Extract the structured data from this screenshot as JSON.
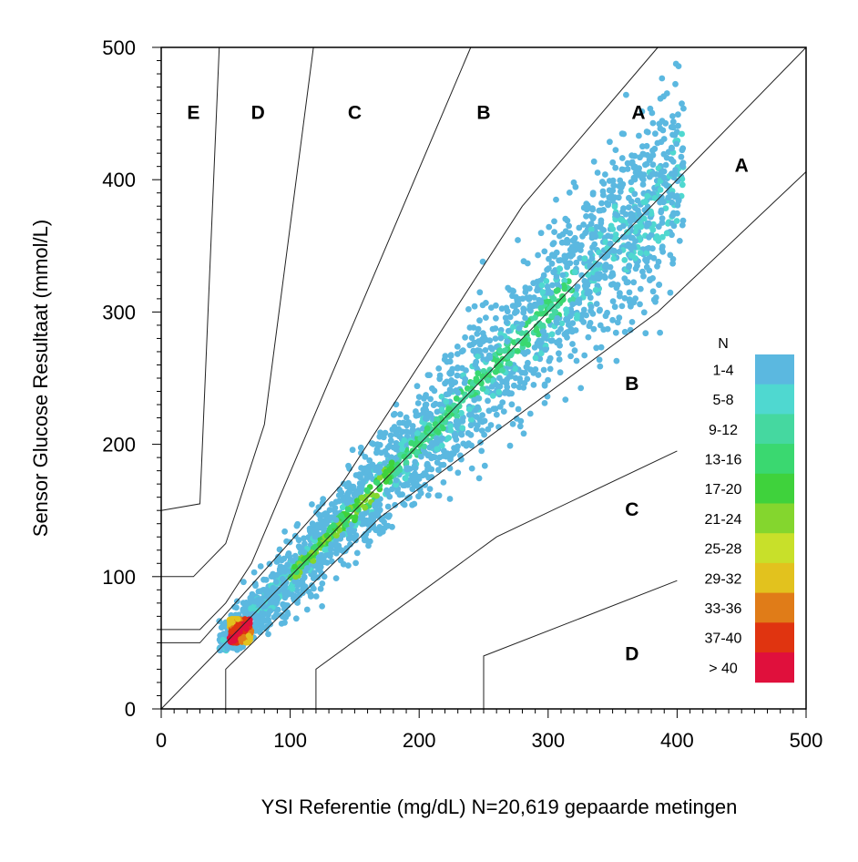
{
  "chart_data": {
    "type": "scatter",
    "title": "",
    "xlabel": "YSI Referentie (mg/dL) N=20,619 gepaarde metingen",
    "ylabel": "Sensor Glucose Resultaat (mmol/L)",
    "xlim": [
      0,
      500
    ],
    "ylim": [
      0,
      500
    ],
    "x_ticks": [
      "0",
      "100",
      "200",
      "300",
      "400",
      "500"
    ],
    "y_ticks": [
      "0",
      "100",
      "200",
      "300",
      "400",
      "500"
    ],
    "grid": false,
    "legend_position": "right",
    "legend": {
      "title": "N",
      "entries": [
        {
          "label": "1-4",
          "color": "#5bb8e0"
        },
        {
          "label": "5-8",
          "color": "#4fd8d0"
        },
        {
          "label": "9-12",
          "color": "#45d8a0"
        },
        {
          "label": "13-16",
          "color": "#3ad870"
        },
        {
          "label": "17-20",
          "color": "#3fd23c"
        },
        {
          "label": "21-24",
          "color": "#84d62e"
        },
        {
          "label": "25-28",
          "color": "#c8e02a"
        },
        {
          "label": "29-32",
          "color": "#e2c21e"
        },
        {
          "label": "33-36",
          "color": "#e07c18"
        },
        {
          "label": "37-40",
          "color": "#e03410"
        },
        {
          "label": "> 40",
          "color": "#e0103c"
        }
      ]
    },
    "zone_labels": [
      {
        "label": "E",
        "x": 25,
        "y": 446
      },
      {
        "label": "D",
        "x": 75,
        "y": 446
      },
      {
        "label": "C",
        "x": 150,
        "y": 446
      },
      {
        "label": "B",
        "x": 250,
        "y": 446
      },
      {
        "label": "A",
        "x": 370,
        "y": 446
      },
      {
        "label": "A",
        "x": 450,
        "y": 406
      },
      {
        "label": "B",
        "x": 365,
        "y": 241
      },
      {
        "label": "C",
        "x": 365,
        "y": 146
      },
      {
        "label": "D",
        "x": 365,
        "y": 37
      }
    ],
    "zone_boundaries": [
      [
        [
          0,
          150
        ],
        [
          30,
          155
        ],
        [
          45,
          500
        ]
      ],
      [
        [
          0,
          100
        ],
        [
          25,
          100
        ],
        [
          50,
          125
        ],
        [
          80,
          215
        ],
        [
          118,
          500
        ]
      ],
      [
        [
          0,
          60
        ],
        [
          30,
          60
        ],
        [
          50,
          80
        ],
        [
          70,
          110
        ],
        [
          240,
          500
        ]
      ],
      [
        [
          0,
          50
        ],
        [
          30,
          50
        ],
        [
          140,
          170
        ],
        [
          280,
          380
        ],
        [
          385,
          500
        ]
      ],
      [
        [
          0,
          0
        ],
        [
          500,
          500
        ]
      ],
      [
        [
          50,
          0
        ],
        [
          50,
          30
        ],
        [
          170,
          145
        ],
        [
          385,
          300
        ],
        [
          500,
          406
        ]
      ],
      [
        [
          120,
          0
        ],
        [
          120,
          30
        ],
        [
          260,
          130
        ],
        [
          400,
          195
        ]
      ],
      [
        [
          250,
          0
        ],
        [
          250,
          40
        ],
        [
          400,
          97
        ]
      ]
    ],
    "density_peak": {
      "x": [
        53,
        70
      ],
      "y": [
        50,
        68
      ],
      "bin": "> 40"
    }
  }
}
